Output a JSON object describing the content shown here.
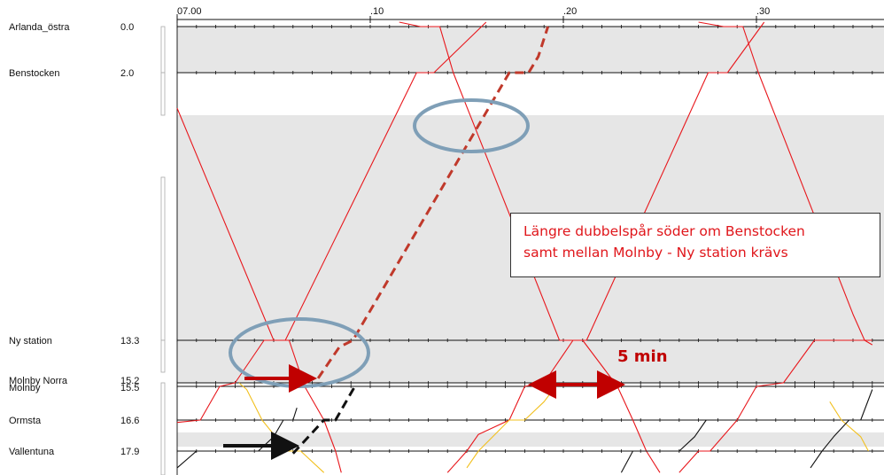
{
  "chart_data": {
    "type": "line",
    "title": "",
    "time_ticks": [
      {
        "t": 0,
        "label": "07.00"
      },
      {
        "t": 10,
        "label": ".10"
      },
      {
        "t": 20,
        "label": ".20"
      },
      {
        "t": 30,
        "label": ".30"
      }
    ],
    "time_range": [
      0,
      36
    ],
    "stations": [
      {
        "name": "Arlanda_östra",
        "km": "0.0"
      },
      {
        "name": "Benstocken",
        "km": "2.0"
      },
      {
        "name": "Ny station",
        "km": "13.3"
      },
      {
        "name": "Molnby Norra",
        "km": "15.2"
      },
      {
        "name": "Molnby",
        "km": "15.5"
      },
      {
        "name": "Ormsta",
        "km": "16.6"
      },
      {
        "name": "Vallentuna",
        "km": "17.9"
      }
    ],
    "series": [
      {
        "color": "#e8161b",
        "style": "solid",
        "trains": [
          [
            [
              0.0,
              3.5
            ],
            [
              5.0,
              13.3
            ],
            [
              5.8,
              13.3
            ],
            [
              6.6,
              15.5
            ],
            [
              7.6,
              16.6
            ],
            [
              8.2,
              17.9
            ],
            [
              8.5,
              18.8
            ]
          ],
          [
            [
              0.0,
              16.7
            ],
            [
              1.2,
              16.6
            ],
            [
              2.2,
              15.5
            ],
            [
              3.0,
              15.2
            ],
            [
              4.5,
              13.3
            ],
            [
              5.6,
              13.3
            ],
            [
              12.4,
              2.0
            ],
            [
              13.3,
              2.0
            ],
            [
              16.0,
              -0.3
            ]
          ],
          [
            [
              11.5,
              -0.3
            ],
            [
              12.6,
              0.0
            ],
            [
              13.6,
              0.0
            ],
            [
              14.3,
              2.0
            ],
            [
              19.8,
              13.3
            ],
            [
              21.0,
              13.3
            ],
            [
              22.8,
              15.5
            ],
            [
              23.6,
              16.6
            ],
            [
              24.3,
              17.9
            ],
            [
              25.0,
              18.8
            ]
          ],
          [
            [
              14.0,
              18.8
            ],
            [
              15.0,
              17.9
            ],
            [
              15.6,
              17.2
            ],
            [
              17.2,
              16.6
            ],
            [
              18.0,
              15.5
            ],
            [
              19.0,
              15.2
            ],
            [
              20.5,
              13.3
            ],
            [
              21.2,
              13.3
            ],
            [
              27.5,
              2.0
            ],
            [
              28.5,
              2.0
            ],
            [
              30.4,
              -0.3
            ]
          ],
          [
            [
              27.0,
              -0.3
            ],
            [
              28.3,
              0.0
            ],
            [
              29.3,
              0.0
            ],
            [
              30.1,
              2.0
            ],
            [
              35.0,
              12.2
            ],
            [
              35.6,
              13.3
            ],
            [
              36.0,
              13.5
            ]
          ],
          [
            [
              26.0,
              18.8
            ],
            [
              27.0,
              17.9
            ],
            [
              27.6,
              17.9
            ],
            [
              29.0,
              16.6
            ],
            [
              30.0,
              15.5
            ],
            [
              31.4,
              15.2
            ],
            [
              33.0,
              13.3
            ],
            [
              36.0,
              13.3
            ]
          ]
        ]
      },
      {
        "color": "#f2c01e",
        "style": "solid",
        "trains": [
          [
            [
              3.2,
              15.2
            ],
            [
              3.6,
              15.6
            ],
            [
              4.4,
              16.6
            ],
            [
              5.0,
              17.2
            ],
            [
              5.5,
              17.9
            ],
            [
              6.4,
              17.9
            ],
            [
              7.6,
              18.8
            ]
          ],
          [
            [
              15.0,
              18.6
            ],
            [
              15.6,
              17.9
            ],
            [
              17.2,
              16.6
            ],
            [
              18.0,
              16.6
            ],
            [
              19.0,
              16.0
            ],
            [
              19.6,
              15.5
            ]
          ],
          [
            [
              33.8,
              16.0
            ],
            [
              34.4,
              16.6
            ],
            [
              35.4,
              17.3
            ],
            [
              35.8,
              17.9
            ]
          ]
        ]
      },
      {
        "color": "#111111",
        "style": "solid",
        "trains": [
          [
            [
              0.0,
              18.6
            ],
            [
              1.0,
              17.9
            ],
            [
              2.0,
              17.9
            ],
            [
              4.2,
              17.9
            ],
            [
              5.0,
              17.3
            ],
            [
              5.5,
              16.6
            ],
            [
              6.0,
              16.6
            ],
            [
              6.2,
              16.2
            ]
          ],
          [
            [
              23.0,
              18.8
            ],
            [
              23.6,
              17.9
            ],
            [
              24.2,
              17.9
            ],
            [
              26.0,
              17.9
            ],
            [
              26.8,
              17.3
            ],
            [
              27.4,
              16.6
            ],
            [
              28.0,
              16.6
            ]
          ],
          [
            [
              32.8,
              18.6
            ],
            [
              33.4,
              17.9
            ],
            [
              34.0,
              17.3
            ],
            [
              34.8,
              16.6
            ],
            [
              35.4,
              16.6
            ],
            [
              36.0,
              15.6
            ]
          ]
        ]
      },
      {
        "color": "#c0392b",
        "style": "dashed",
        "trains": [
          [
            [
              7.3,
              15.0
            ],
            [
              8.4,
              13.6
            ],
            [
              9.1,
              13.3
            ],
            [
              17.2,
              2.0
            ],
            [
              18.2,
              2.0
            ],
            [
              18.7,
              1.3
            ],
            [
              19.2,
              0.0
            ]
          ]
        ]
      },
      {
        "color": "#111111",
        "style": "dashed",
        "trains": [
          [
            [
              6.0,
              18.0
            ],
            [
              7.6,
              16.6
            ],
            [
              8.2,
              16.6
            ],
            [
              9.2,
              15.5
            ]
          ]
        ]
      }
    ],
    "annotations": {
      "callout_line1": "Längre dubbelspår söder om Benstocken",
      "callout_line2": "samt mellan Molnby - Ny station krävs",
      "headway": "5 min"
    },
    "colors": {
      "timetable": "#e8161b",
      "proposed": "#c0392b",
      "band": "#e6e6e6",
      "ellipse": "#7f9fb7",
      "arrow": "#c00000"
    },
    "grid": true
  }
}
